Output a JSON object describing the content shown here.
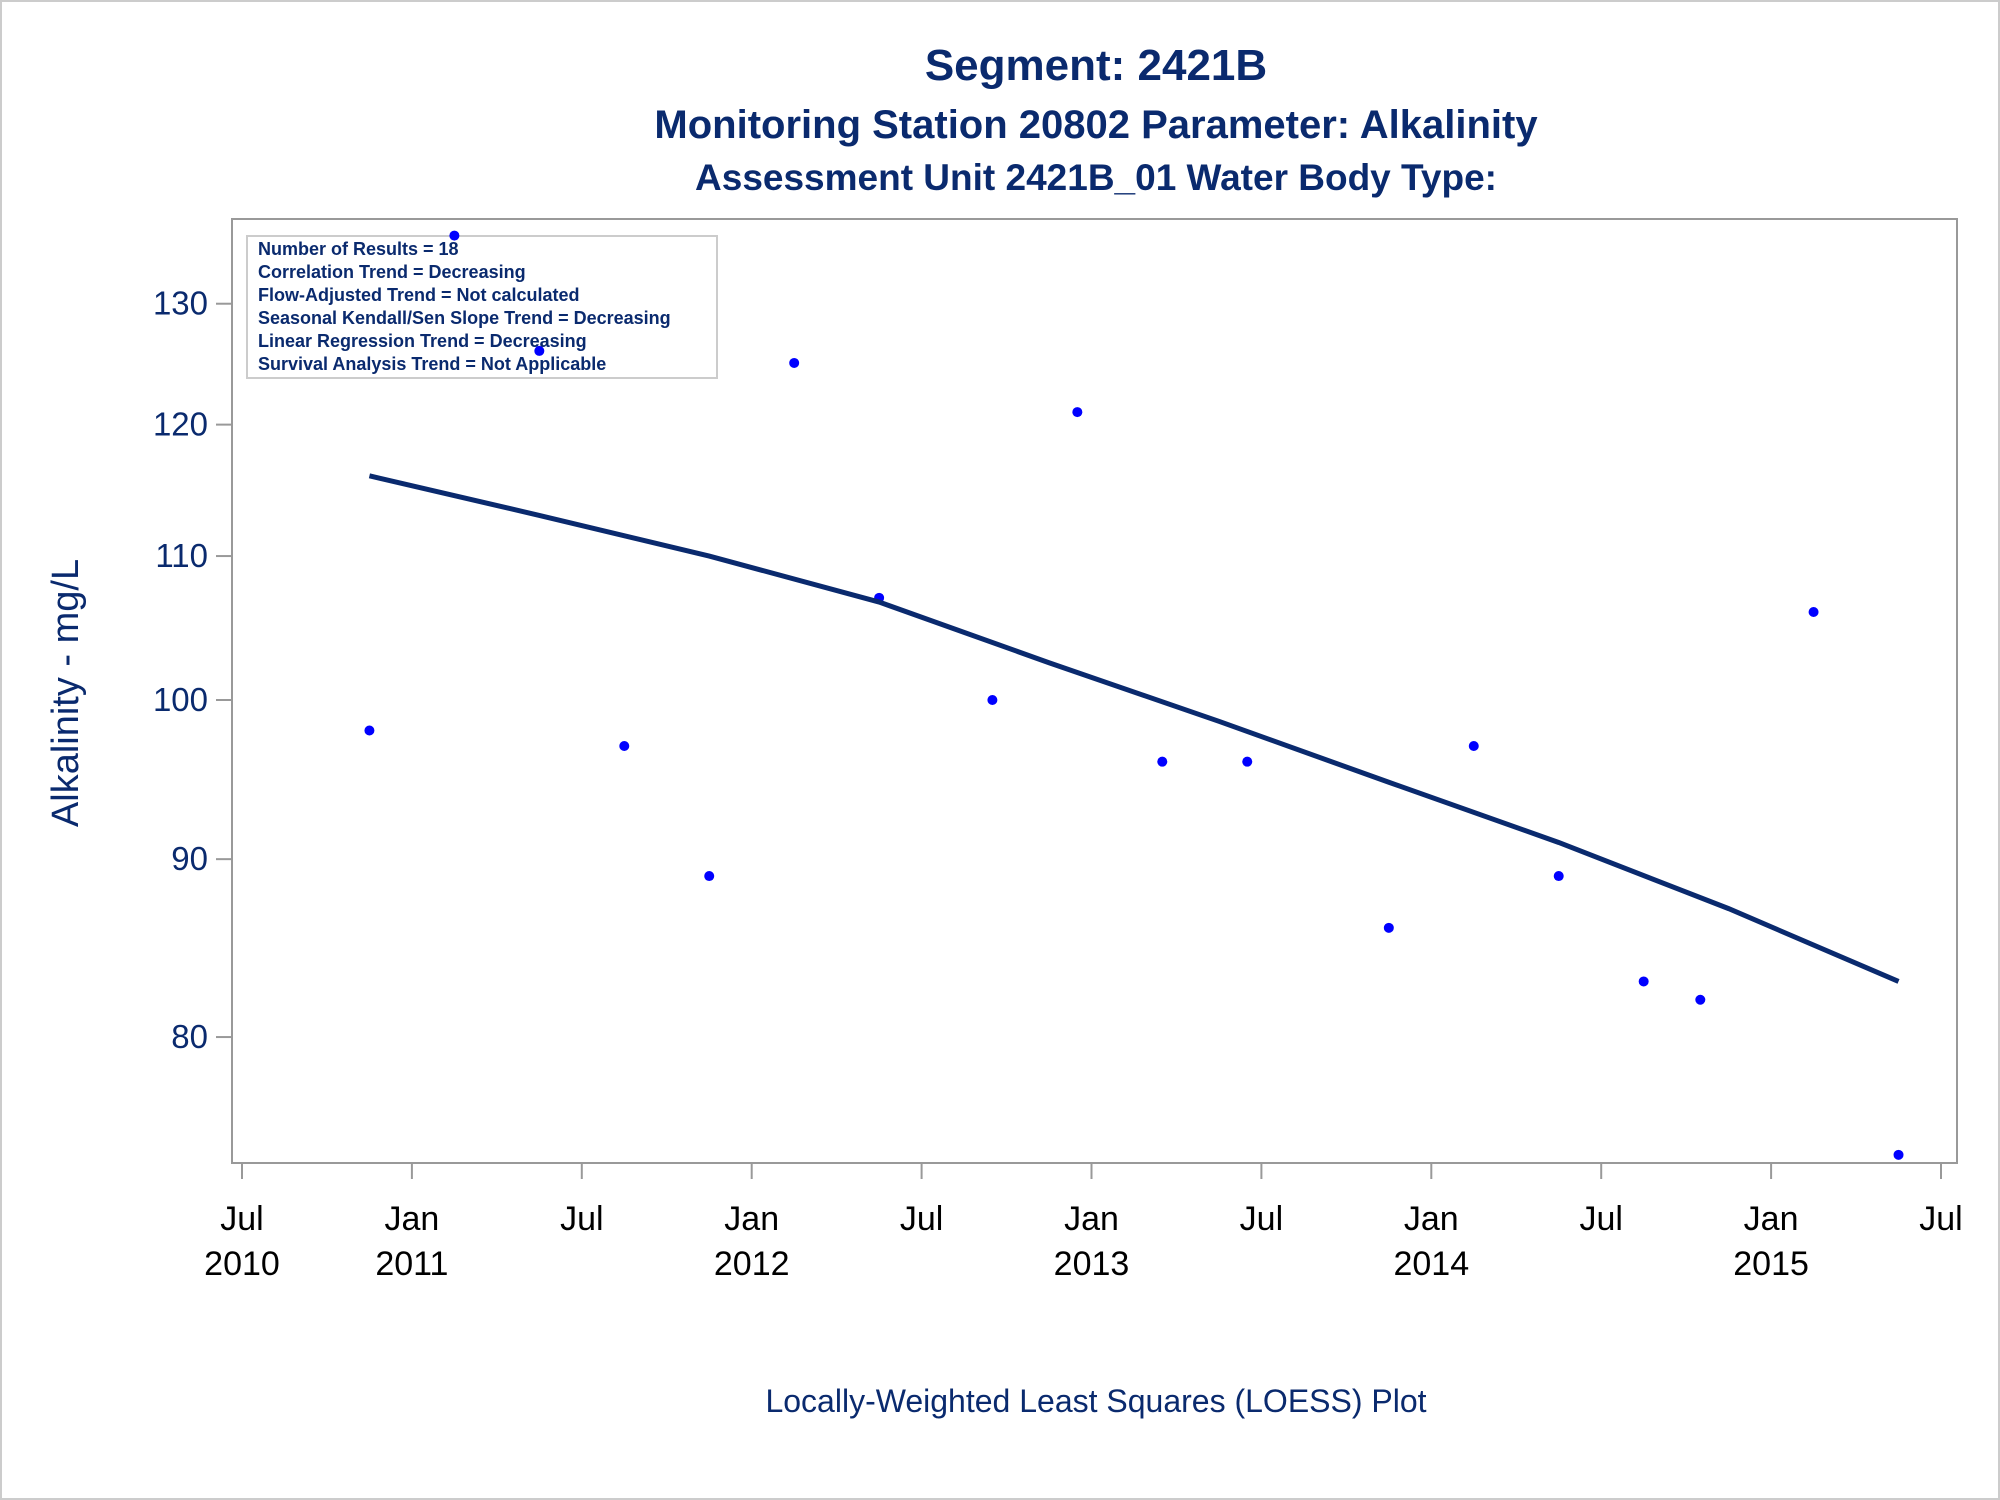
{
  "chart_data": {
    "type": "scatter",
    "title": "Segment: 2421B",
    "subtitle": "Monitoring Station 20802 Parameter: Alkalinity",
    "subtitle2": "Assessment Unit 2421B_01   Water Body Type:",
    "ylabel": "Alkalinity - mg/L",
    "footnote": "Locally-Weighted Least Squares (LOESS) Plot",
    "annotations": [
      "Number of Results = 18",
      "Correlation Trend = Decreasing",
      "Flow-Adjusted Trend = Not calculated",
      "Seasonal Kendall/Sen Slope Trend = Decreasing",
      "Linear Regression Trend = Decreasing",
      "Survival Analysis Trend = Not Applicable"
    ],
    "ylog": true,
    "ylim": [
      73.6,
      137.5
    ],
    "yticks": [
      80,
      90,
      100,
      110,
      120,
      130
    ],
    "xlim": [
      "2010-07",
      "2015-07"
    ],
    "xticks": [
      {
        "value": "2010-07",
        "label": "Jul 2010"
      },
      {
        "value": "2011-01",
        "label": "Jan 2011"
      },
      {
        "value": "2011-07",
        "label": "Jul"
      },
      {
        "value": "2012-01",
        "label": "Jan 2012"
      },
      {
        "value": "2012-07",
        "label": "Jul"
      },
      {
        "value": "2013-01",
        "label": "Jan 2013"
      },
      {
        "value": "2013-07",
        "label": "Jul"
      },
      {
        "value": "2014-01",
        "label": "Jan 2014"
      },
      {
        "value": "2014-07",
        "label": "Jul"
      },
      {
        "value": "2015-01",
        "label": "Jan 2015"
      },
      {
        "value": "2015-07",
        "label": "Jul"
      }
    ],
    "series": [
      {
        "name": "Results",
        "color": "#0000ff",
        "x": [
          "2010-11",
          "2011-02",
          "2011-05",
          "2011-08",
          "2011-11",
          "2012-02",
          "2012-05",
          "2012-09",
          "2012-12",
          "2013-03",
          "2013-06",
          "2013-11",
          "2014-02",
          "2014-05",
          "2014-08",
          "2014-10",
          "2015-02",
          "2015-05"
        ],
        "values": [
          98,
          136,
          126,
          97,
          89,
          125,
          107,
          100,
          121,
          96,
          96,
          86,
          97,
          89,
          83,
          82,
          106,
          74
        ]
      },
      {
        "name": "LOESS",
        "color": "#0a2a6e",
        "x": [
          "2010-11",
          "2011-05",
          "2011-11",
          "2012-05",
          "2012-11",
          "2013-05",
          "2013-11",
          "2014-05",
          "2014-11",
          "2015-05"
        ],
        "values": [
          116,
          113,
          110,
          106.7,
          102.5,
          98.6,
          94.7,
          91,
          87.1,
          83
        ]
      }
    ]
  }
}
